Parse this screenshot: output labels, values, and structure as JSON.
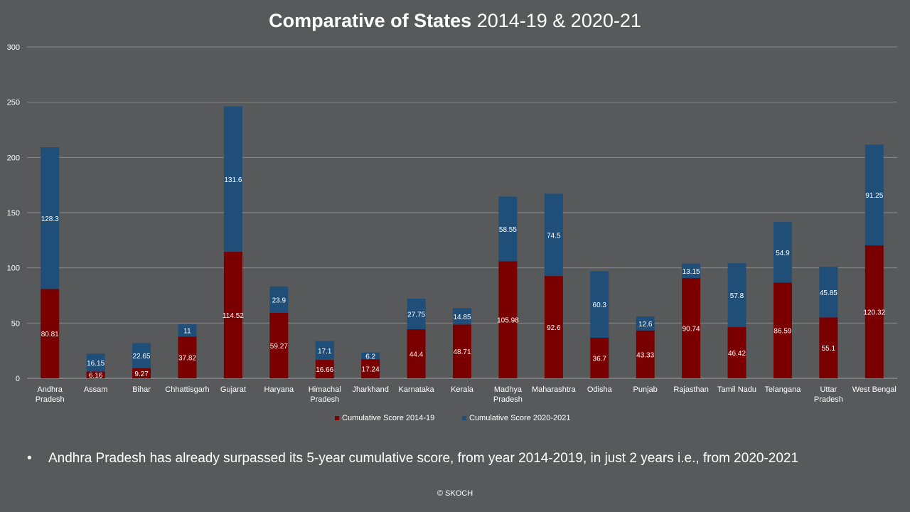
{
  "title": {
    "bold_part": "Comparative of States",
    "normal_part": "2014-19 & 2020-21"
  },
  "bullet_text": "Andhra Pradesh has already surpassed its 5-year cumulative score, from year 2014-2019, in just 2 years i.e., from 2020-2021",
  "footer": "© SKOCH",
  "colors": {
    "background": "#58595b",
    "series_2014": "#7a0000",
    "series_2020": "#1f4e79",
    "gridline": "#8a8b8d"
  },
  "chart_data": {
    "type": "bar",
    "stacked": true,
    "title": "Comparative of States 2014-19 & 2020-21",
    "xlabel": "",
    "ylabel": "",
    "ylim": [
      0,
      300
    ],
    "yticks": [
      0,
      50,
      100,
      150,
      200,
      250,
      300
    ],
    "grid": true,
    "legend_position": "bottom",
    "categories": [
      [
        "Andhra",
        "Pradesh"
      ],
      [
        "Assam"
      ],
      [
        "Bihar"
      ],
      [
        "Chhattisgarh"
      ],
      [
        "Gujarat"
      ],
      [
        "Haryana"
      ],
      [
        "Himachal",
        "Pradesh"
      ],
      [
        "Jharkhand"
      ],
      [
        "Karnataka"
      ],
      [
        "Kerala"
      ],
      [
        "Madhya",
        "Pradesh"
      ],
      [
        "Maharashtra"
      ],
      [
        "Odisha"
      ],
      [
        "Punjab"
      ],
      [
        "Rajasthan"
      ],
      [
        "Tamil Nadu"
      ],
      [
        "Telangana"
      ],
      [
        "Uttar",
        "Pradesh"
      ],
      [
        "West Bengal"
      ]
    ],
    "series": [
      {
        "name": "Cumulative Score 2014-19",
        "color": "#7a0000",
        "values": [
          80.81,
          6.16,
          9.27,
          37.82,
          114.52,
          59.27,
          16.66,
          17.24,
          44.4,
          48.71,
          105.98,
          92.6,
          36.7,
          43.33,
          90.74,
          46.42,
          86.59,
          55.1,
          120.32
        ]
      },
      {
        "name": "Cumulative Score 2020-2021",
        "color": "#1f4e79",
        "values": [
          128.3,
          16.15,
          22.65,
          11,
          131.6,
          23.9,
          17.1,
          6.2,
          27.75,
          14.85,
          58.55,
          74.5,
          60.3,
          12.6,
          13.15,
          57.8,
          54.9,
          45.85,
          91.25
        ]
      }
    ]
  }
}
